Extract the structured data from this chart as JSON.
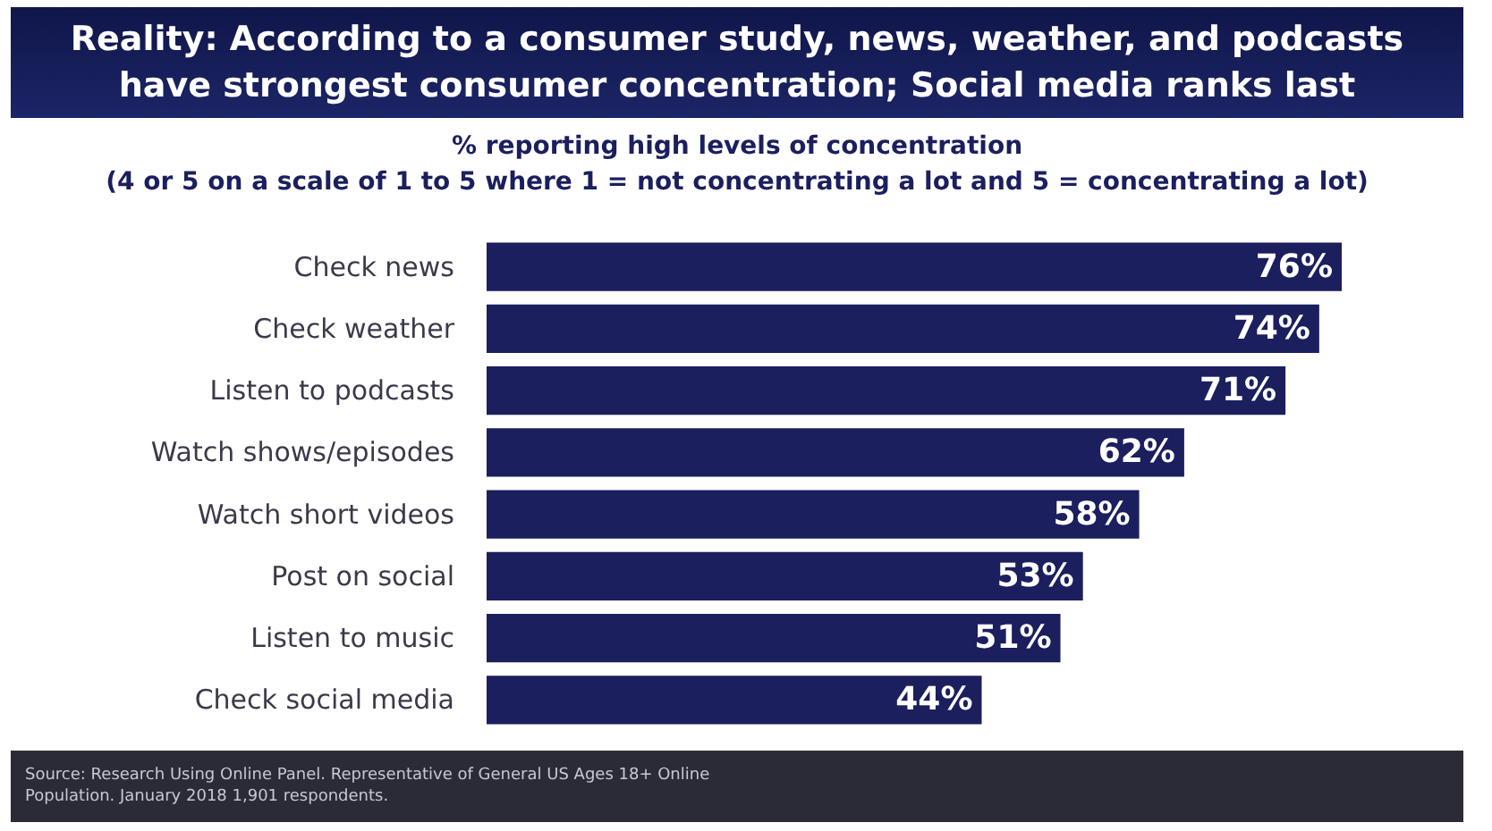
{
  "chart_data": {
    "type": "bar",
    "orientation": "horizontal",
    "title": "Reality: According to a consumer study, news, weather, and podcasts have strongest consumer concentration; Social media ranks last",
    "subtitle": "% reporting high levels of concentration\n(4 or 5 on a scale of 1 to 5 where 1 = not concentrating a lot and 5 = concentrating a lot)",
    "categories": [
      "Check news",
      "Check weather",
      "Listen to podcasts",
      "Watch shows/episodes",
      "Watch short videos",
      "Post on social",
      "Listen to music",
      "Check social media"
    ],
    "values": [
      76,
      74,
      71,
      62,
      58,
      53,
      51,
      44
    ],
    "value_labels": [
      "76%",
      "74%",
      "71%",
      "62%",
      "58%",
      "53%",
      "51%",
      "44%"
    ],
    "color": "#1b1f5e",
    "annotations": [
      "Source: Research Using Online Panel. Representative of General US Ages 18+ Online Population. January 2018 1,901 respondents."
    ]
  }
}
